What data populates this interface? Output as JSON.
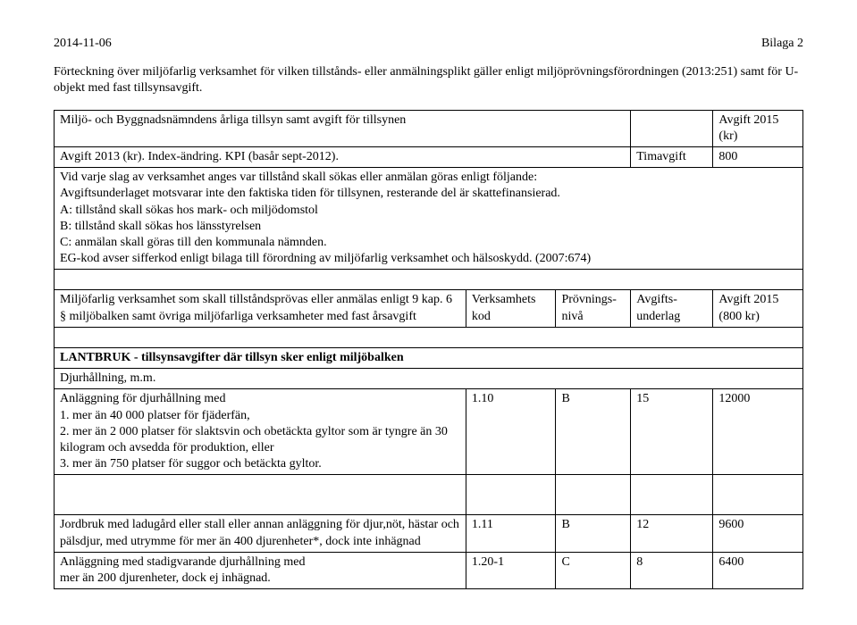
{
  "header": {
    "date": "2014-11-06",
    "bilaga": "Bilaga 2"
  },
  "intro": "Förteckning över miljöfarlig verksamhet för vilken tillstånds- eller anmälningsplikt gäller enligt miljöprövningsförordningen (2013:251) samt för U-objekt med fast tillsynsavgift.",
  "top": {
    "row1_left": "Miljö- och Byggnadsnämndens årliga tillsyn samt avgift för tillsynen",
    "row1_right": "Avgift 2015 (kr)",
    "row2_left": "Avgift 2013 (kr). Index-ändring. KPI (basår sept-2012).",
    "row2_mid": "Timavgift",
    "row2_right": "800",
    "explain": "Vid varje slag av verksamhet anges var tillstånd skall sökas eller anmälan göras enligt följande:\nAvgiftsunderlaget motsvarar inte den faktiska tiden för tillsynen, resterande del är skattefinansierad.\nA: tillstånd skall sökas hos mark- och miljödomstol\nB: tillstånd skall sökas hos länsstyrelsen\nC: anmälan skall göras till den kommunala nämnden.\nEG-kod avser sifferkod enligt bilaga till förordning av miljöfarlig verksamhet och hälsoskydd. (2007:674)"
  },
  "cols": {
    "c1": "Miljöfarlig verksamhet som skall tillståndsprövas eller anmälas enligt 9 kap. 6 § miljöbalken samt övriga miljöfarliga verksamheter med fast årsavgift",
    "c2": "Verksamhets kod",
    "c3": "Prövnings-nivå",
    "c4": "Avgifts-underlag",
    "c5": "Avgift 2015 (800 kr)"
  },
  "section": {
    "title": "LANTBRUK - tillsynsavgifter där tillsyn sker enligt miljöbalken",
    "sub": "Djurhållning, m.m."
  },
  "rows": {
    "r1": {
      "text": "Anläggning för djurhållning med\n1. mer än 40 000 platser för fjäderfän,\n2. mer än 2 000 platser för slaktsvin och obetäckta gyltor som är tyngre än 30 kilogram och avsedda för produktion, eller\n3. mer än 750 platser för suggor och betäckta gyltor.",
      "kod": "1.10",
      "niva": "B",
      "underlag": "15",
      "avgift": "12000"
    },
    "r2": {
      "text": "Jordbruk med ladugård eller stall eller annan anläggning för djur,nöt, hästar och pälsdjur, med utrymme för mer än 400 djurenheter*, dock inte inhägnad",
      "kod": "1.11",
      "niva": "B",
      "underlag": "12",
      "avgift": "9600"
    },
    "r3": {
      "text": "Anläggning med stadigvarande djurhållning med\nmer än 200 djurenheter, dock ej inhägnad.",
      "kod": "1.20-1",
      "niva": "C",
      "underlag": "8",
      "avgift": "6400"
    }
  }
}
